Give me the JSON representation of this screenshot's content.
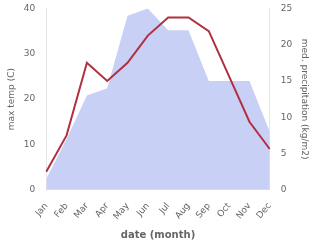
{
  "chart_data": {
    "type": "line",
    "xlabel": "date (month)",
    "ylabel": "max temp (C)",
    "y2label": "med. precipitation (kg/m2)",
    "categories": [
      "Jan",
      "Feb",
      "Mar",
      "Apr",
      "May",
      "Jun",
      "Jul",
      "Aug",
      "Sep",
      "Oct",
      "Nov",
      "Dec"
    ],
    "series": [
      {
        "type": "area",
        "color": "#c8d0f5",
        "axis": "y2",
        "values": [
          1.5,
          7,
          13,
          14,
          24,
          25,
          22,
          22,
          15,
          15,
          15,
          8
        ]
      },
      {
        "type": "line",
        "color": "#b03040",
        "axis": "y",
        "values": [
          4,
          12,
          28,
          24,
          28,
          34,
          38,
          38,
          35,
          25,
          15,
          9
        ]
      }
    ],
    "ylim": [
      0,
      40
    ],
    "yticks": [
      0,
      10,
      20,
      30,
      40
    ],
    "y2lim": [
      0,
      25
    ],
    "y2ticks": [
      0,
      5,
      10,
      15,
      20,
      25
    ],
    "grid": false
  }
}
